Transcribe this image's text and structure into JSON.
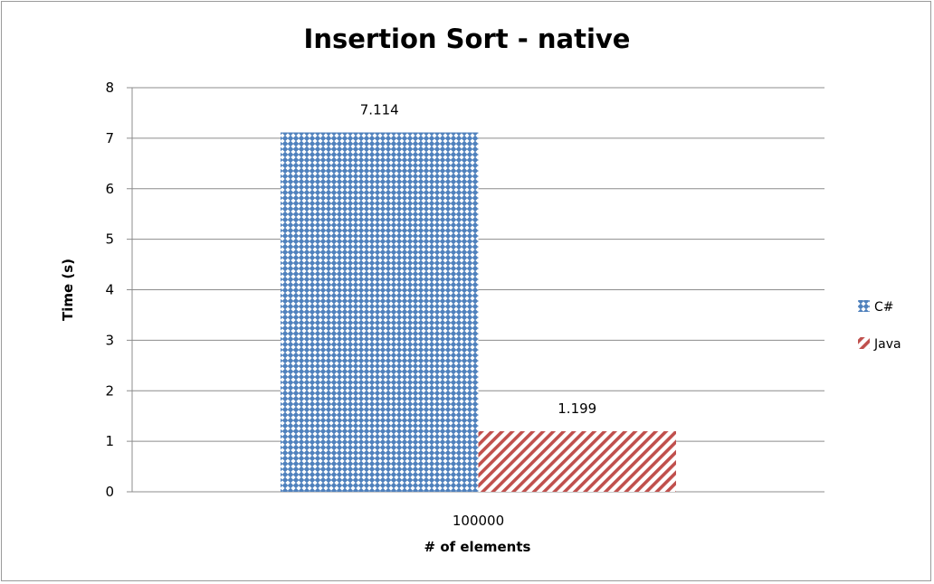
{
  "chart_data": {
    "type": "bar",
    "title": "Insertion Sort - native",
    "xlabel": "# of elements",
    "ylabel": "Time (s)",
    "categories": [
      "100000"
    ],
    "ylim": [
      0,
      8
    ],
    "yticks": [
      0,
      1,
      2,
      3,
      4,
      5,
      6,
      7,
      8
    ],
    "grid": true,
    "legend_position": "right",
    "series": [
      {
        "name": "C#",
        "values": [
          7.114
        ],
        "value_labels": [
          "7.114"
        ],
        "color": "#4f81bd",
        "pattern": "dotted-grid"
      },
      {
        "name": "Java",
        "values": [
          1.199
        ],
        "value_labels": [
          "1.199"
        ],
        "color": "#c0504d",
        "pattern": "diagonal-stripes"
      }
    ]
  }
}
